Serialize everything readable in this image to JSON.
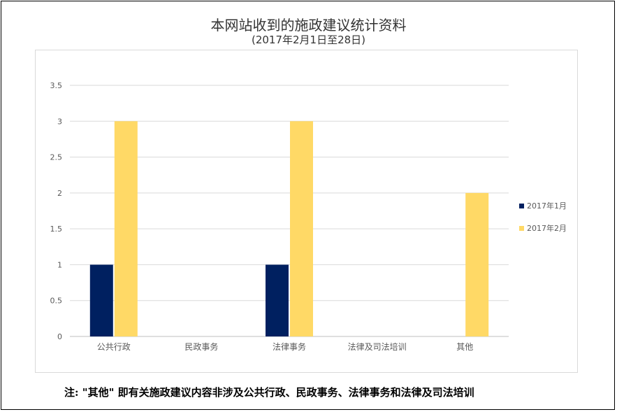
{
  "chart_data": {
    "type": "bar",
    "title": "本网站收到的施政建议统计资料",
    "subtitle": "(2017年2月1日至28日)",
    "categories": [
      "公共行政",
      "民政事务",
      "法律事务",
      "法律及司法培训",
      "其他"
    ],
    "series": [
      {
        "name": "2017年1月",
        "values": [
          1,
          0,
          1,
          0,
          0
        ],
        "color": "#002060"
      },
      {
        "name": "2017年2月",
        "values": [
          3,
          0,
          3,
          0,
          2
        ],
        "color": "#ffd966"
      }
    ],
    "ylim": [
      0,
      3.5
    ],
    "yticks": [
      "0",
      "0.5",
      "1",
      "1.5",
      "2",
      "2.5",
      "3",
      "3.5"
    ],
    "grid": true,
    "legend": "right"
  },
  "footnote": "注: \"其他\" 即有关施政建议内容非涉及公共行政、民政事务、法律事务和法律及司法培训"
}
